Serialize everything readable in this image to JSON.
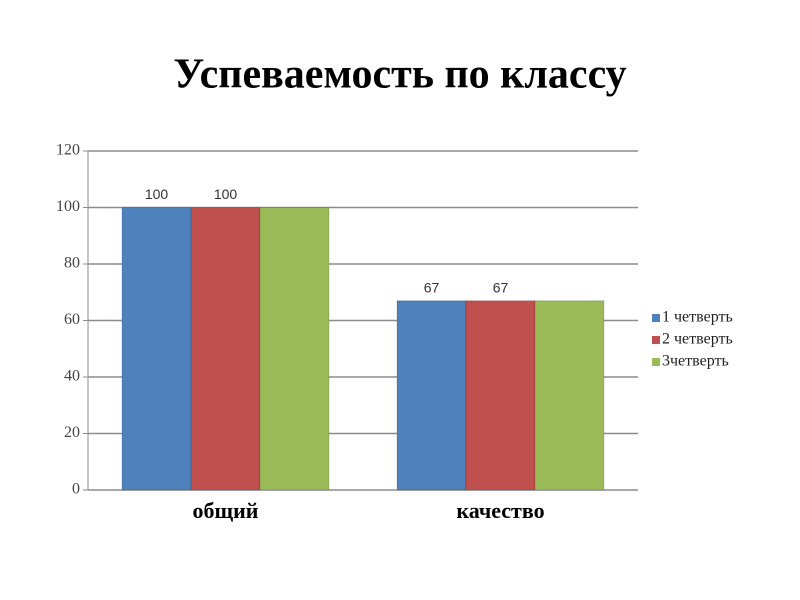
{
  "chart_data": {
    "type": "bar",
    "title": "Успеваемость по классу",
    "categories": [
      "общий",
      "качество"
    ],
    "series": [
      {
        "name": "1 четверть",
        "color": "#4f81bd",
        "values": [
          100,
          67
        ],
        "data_labels": true
      },
      {
        "name": "2 четверть",
        "color": "#c0504d",
        "values": [
          100,
          67
        ],
        "data_labels": true
      },
      {
        "name": "3четверть",
        "color": "#9bbb59",
        "values": [
          100,
          67
        ],
        "data_labels": false
      }
    ],
    "ylim": [
      0,
      120
    ],
    "yticks": [
      0,
      20,
      40,
      60,
      80,
      100,
      120
    ],
    "grid": true,
    "legend": "right"
  }
}
